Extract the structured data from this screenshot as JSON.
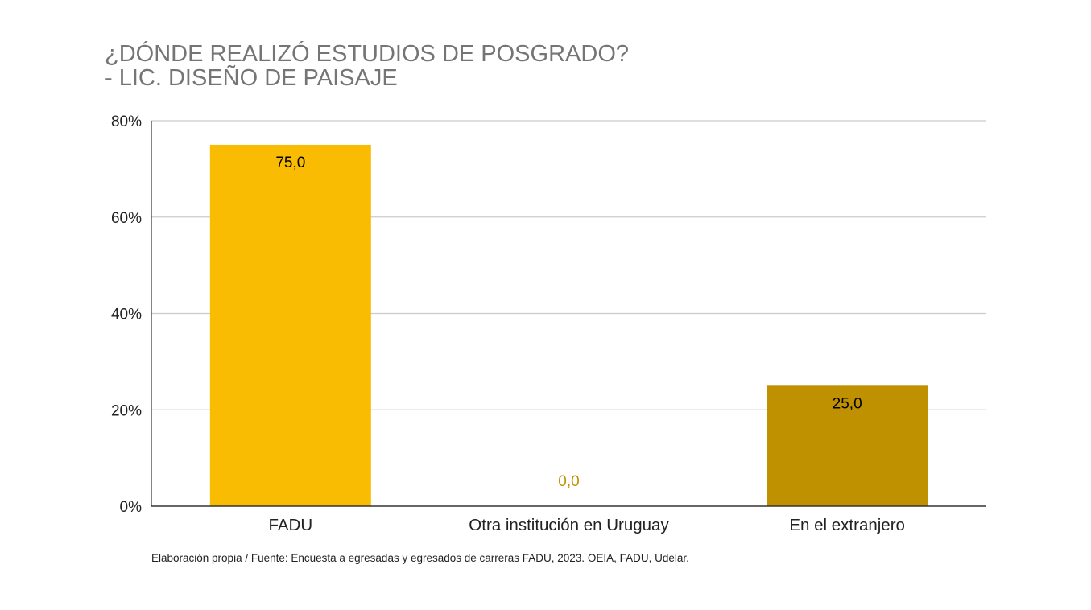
{
  "chart_data": {
    "type": "bar",
    "title": [
      "¿DÓNDE REALIZÓ ESTUDIOS DE POSGRADO?",
      "- LIC. DISEÑO DE PAISAJE"
    ],
    "categories": [
      "FADU",
      "Otra institución en Uruguay",
      "En el extranjero"
    ],
    "values": [
      75.0,
      0.0,
      25.0
    ],
    "value_labels": [
      "75,0",
      "0,0",
      "25,0"
    ],
    "bar_colors": [
      "#F9BC02",
      "#DDA800",
      "#BF9000"
    ],
    "ylim": [
      0,
      80
    ],
    "yticks": [
      {
        "value": 0,
        "label": "0%"
      },
      {
        "value": 20,
        "label": "20%"
      },
      {
        "value": 40,
        "label": "40%"
      },
      {
        "value": 60,
        "label": "60%"
      },
      {
        "value": 80,
        "label": "80%"
      }
    ],
    "xlabel": "",
    "ylabel": "",
    "grid": true,
    "legend": "none"
  },
  "source_note": "Elaboración propia / Fuente: Encuesta a egresadas y egresados de carreras FADU, 2023. OEIA, FADU, Udelar.",
  "colors": {
    "title": "#757575",
    "gridline": "#CCCCCC",
    "axis": "#333333",
    "text": "#222222",
    "zero_label": "#BF9000"
  }
}
